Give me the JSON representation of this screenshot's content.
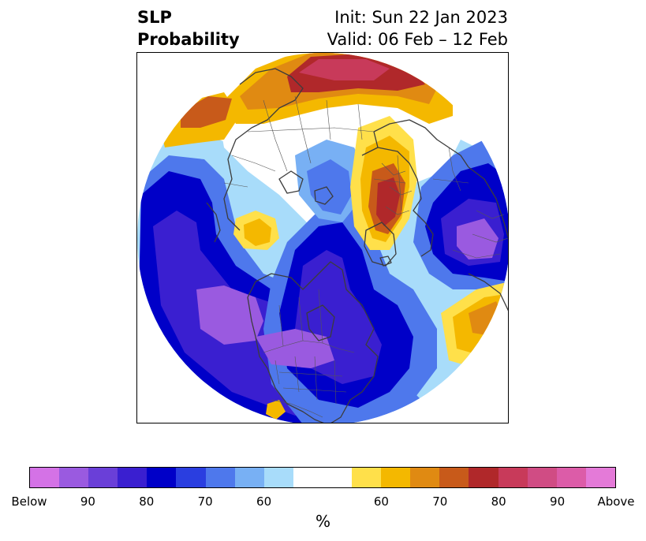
{
  "title": {
    "left_line1": "SLP",
    "left_line2": "Probability",
    "right_line1": "Init: Sun 22 Jan 2023",
    "right_line2": "Valid: 06 Feb – 12 Feb"
  },
  "colorbar": {
    "colors": [
      "#d472e6",
      "#9a5ae0",
      "#6a3fd8",
      "#3a1fd0",
      "#0000c8",
      "#2a3ee0",
      "#4e78ec",
      "#78b0f4",
      "#a8dcfa",
      "#ffffff",
      "#ffffff",
      "#ffe04a",
      "#f4b800",
      "#e08a12",
      "#c85a1a",
      "#b0282a",
      "#c83a5a",
      "#d04c84",
      "#dc5ca8",
      "#e47ad8"
    ],
    "ticks": [
      {
        "label": "Below",
        "frac": 0.0
      },
      {
        "label": "90",
        "frac": 0.1
      },
      {
        "label": "80",
        "frac": 0.2
      },
      {
        "label": "70",
        "frac": 0.3
      },
      {
        "label": "60",
        "frac": 0.4
      },
      {
        "label": "60",
        "frac": 0.6
      },
      {
        "label": "70",
        "frac": 0.7
      },
      {
        "label": "80",
        "frac": 0.8
      },
      {
        "label": "90",
        "frac": 0.9
      },
      {
        "label": "Above",
        "frac": 1.0
      }
    ],
    "unit": "%"
  },
  "map": {
    "palette": {
      "below_90": "#9a5ae0",
      "below_80": "#3a1fd0",
      "below_70": "#0000c8",
      "below_60": "#4e78ec",
      "below_50": "#78b0f4",
      "below_40": "#a8dcfa",
      "above_50": "#ffe04a",
      "above_60": "#f4b800",
      "above_70": "#e08a12",
      "above_75": "#c85a1a",
      "above_80": "#b0282a",
      "above_90": "#c83a5a",
      "above_95": "#d04c84",
      "coast": "#3c3c3c",
      "border": "#555555"
    }
  }
}
